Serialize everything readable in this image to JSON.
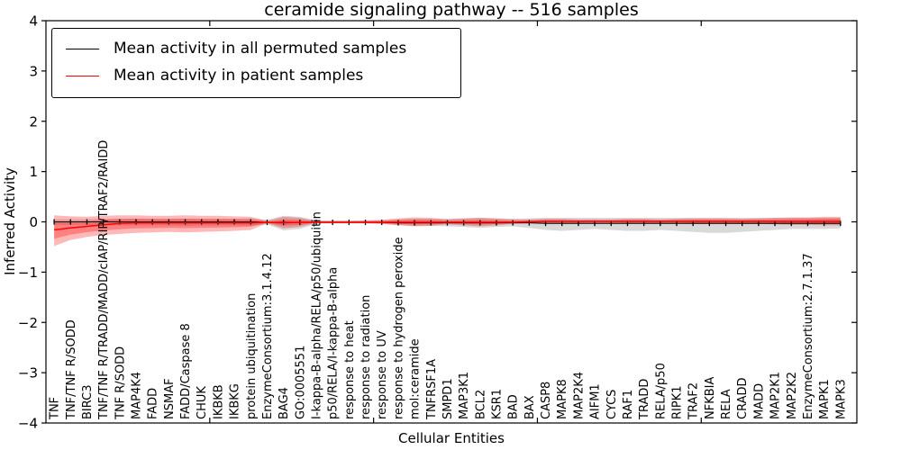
{
  "chart_data": {
    "type": "line",
    "title": "ceramide signaling pathway -- 516 samples",
    "xlabel": "Cellular Entities",
    "ylabel": "Inferred Activity",
    "ylim": [
      -4,
      4
    ],
    "ytick_labels": [
      "4",
      "3",
      "2",
      "1",
      "0",
      "−1",
      "−2",
      "−3",
      "−4"
    ],
    "ytick_values": [
      4,
      3,
      2,
      1,
      0,
      -1,
      -2,
      -3,
      -4
    ],
    "xlim": [
      0,
      49.5
    ],
    "xtick_positions": [
      10,
      20,
      30,
      40
    ],
    "grid": false,
    "legend_position": "upper left",
    "categories": [
      "TNF",
      "TNF/TNF R/SODD",
      "BIRC3",
      "TNF/TNF R/TRADD/MADD/cIAP/RIP/TRAF2/RAIDD",
      "TNF R/SODD",
      "MAP4K4",
      "FADD",
      "NSMAF",
      "FADD/Caspase 8",
      "CHUK",
      "IKBKB",
      "IKBKG",
      "protein ubiquitination",
      "EnzymeConsortium:3.1.4.12",
      "BAG4",
      "GO:0005551",
      "I-kappa-B-alpha/RELA/p50/ubiquitin",
      "p50/RELA/I-kappa-B-alpha",
      "response to heat",
      "response to radiation",
      "response to UV",
      "response to hydrogen peroxide",
      "mol:ceramide",
      "TNFRSF1A",
      "SMPD1",
      "MAP3K1",
      "BCL2",
      "KSR1",
      "BAD",
      "BAX",
      "CASP8",
      "MAPK8",
      "MAP2K4",
      "AIFM1",
      "CYCS",
      "RAF1",
      "TRADD",
      "RELA/p50",
      "RIPK1",
      "TRAF2",
      "NFKBIA",
      "RELA",
      "CRADD",
      "MADD",
      "MAP2K1",
      "MAP2K2",
      "EnzymeConsortium:2.7.1.37",
      "MAPK1",
      "MAPK3"
    ],
    "series": [
      {
        "name": "Mean activity in all permuted samples",
        "color": "#000000",
        "marker": "|",
        "values": [
          0,
          0,
          0,
          0,
          0,
          0,
          0,
          0,
          0,
          0,
          0,
          0,
          0,
          -0.01,
          -0.01,
          -0.01,
          -0.01,
          -0.01,
          -0.01,
          -0.01,
          -0.01,
          -0.02,
          -0.02,
          -0.02,
          -0.02,
          -0.02,
          -0.02,
          -0.02,
          -0.02,
          -0.02,
          -0.03,
          -0.03,
          -0.03,
          -0.03,
          -0.03,
          -0.03,
          -0.03,
          -0.03,
          -0.03,
          -0.03,
          -0.03,
          -0.03,
          -0.03,
          -0.03,
          -0.03,
          -0.03,
          -0.03,
          -0.03,
          -0.03
        ]
      },
      {
        "name": "Mean activity in patient samples",
        "color": "#ff0000",
        "marker": null,
        "values": [
          -0.16,
          -0.12,
          -0.09,
          -0.06,
          -0.03,
          -0.02,
          -0.02,
          -0.02,
          -0.02,
          -0.02,
          -0.02,
          -0.02,
          -0.02,
          -0.01,
          -0.02,
          -0.01,
          -0.01,
          -0.01,
          -0.01,
          -0.01,
          -0.01,
          -0.01,
          -0.01,
          -0.01,
          -0.01,
          -0.01,
          -0.01,
          -0.01,
          -0.01,
          0,
          0.01,
          0.01,
          0.01,
          0.01,
          0.01,
          0.01,
          0.01,
          0.01,
          0.01,
          0.01,
          0.01,
          0.01,
          0.01,
          0.01,
          0.01,
          0.01,
          0.01,
          0.01,
          0.01
        ]
      }
    ],
    "bands": [
      {
        "name": "permuted-sample-range",
        "series": 0,
        "color": "#777777",
        "opacity": 0.28,
        "core_scale": null,
        "lo": [
          -0.06,
          -0.06,
          -0.06,
          -0.07,
          -0.07,
          -0.07,
          -0.07,
          -0.07,
          -0.08,
          -0.07,
          -0.07,
          -0.07,
          -0.08,
          -0.05,
          -0.17,
          -0.14,
          -0.04,
          -0.03,
          -0.03,
          -0.03,
          -0.04,
          -0.06,
          -0.08,
          -0.08,
          -0.09,
          -0.1,
          -0.12,
          -0.1,
          -0.09,
          -0.12,
          -0.16,
          -0.18,
          -0.16,
          -0.14,
          -0.16,
          -0.18,
          -0.18,
          -0.16,
          -0.18,
          -0.2,
          -0.22,
          -0.22,
          -0.2,
          -0.18,
          -0.16,
          -0.14,
          -0.14,
          -0.14,
          -0.13
        ],
        "hi": [
          0.05,
          0.05,
          0.05,
          0.06,
          0.06,
          0.06,
          0.06,
          0.06,
          0.06,
          0.06,
          0.06,
          0.06,
          0.07,
          0.04,
          0.12,
          0.1,
          0.03,
          0.03,
          0.03,
          0.03,
          0.03,
          0.05,
          0.06,
          0.06,
          0.06,
          0.07,
          0.08,
          0.07,
          0.06,
          0.07,
          0.08,
          0.08,
          0.08,
          0.08,
          0.08,
          0.08,
          0.08,
          0.08,
          0.08,
          0.08,
          0.08,
          0.08,
          0.08,
          0.08,
          0.08,
          0.08,
          0.08,
          0.08,
          0.08
        ]
      },
      {
        "name": "patient-sample-range",
        "series": 1,
        "color": "#ff0000",
        "opacity": 0.28,
        "core_scale": 0.55,
        "core_opacity": 0.3,
        "lo": [
          -0.48,
          -0.36,
          -0.3,
          -0.26,
          -0.24,
          -0.22,
          -0.21,
          -0.2,
          -0.21,
          -0.2,
          -0.19,
          -0.18,
          -0.16,
          -0.03,
          -0.13,
          -0.1,
          -0.02,
          -0.03,
          -0.03,
          -0.03,
          -0.04,
          -0.07,
          -0.09,
          -0.08,
          -0.05,
          -0.07,
          -0.09,
          -0.07,
          -0.04,
          -0.03,
          -0.03,
          -0.03,
          -0.03,
          -0.02,
          -0.02,
          -0.03,
          -0.03,
          -0.03,
          -0.03,
          -0.04,
          -0.04,
          -0.04,
          -0.04,
          -0.04,
          -0.05,
          -0.06,
          -0.06,
          -0.07,
          -0.07
        ],
        "hi": [
          0.13,
          0.11,
          0.1,
          0.12,
          0.13,
          0.13,
          0.12,
          0.12,
          0.13,
          0.12,
          0.12,
          0.11,
          0.1,
          0.02,
          0.1,
          0.08,
          0.02,
          0.02,
          0.02,
          0.03,
          0.04,
          0.07,
          0.09,
          0.08,
          0.05,
          0.07,
          0.08,
          0.07,
          0.05,
          0.05,
          0.06,
          0.06,
          0.05,
          0.05,
          0.05,
          0.06,
          0.06,
          0.05,
          0.06,
          0.07,
          0.07,
          0.07,
          0.06,
          0.07,
          0.08,
          0.09,
          0.09,
          0.1,
          0.1
        ]
      }
    ]
  }
}
